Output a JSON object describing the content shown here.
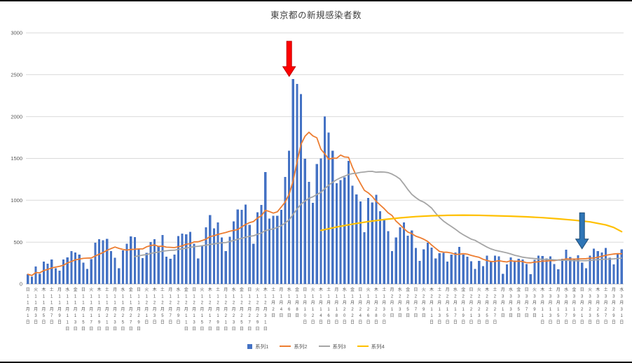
{
  "chart_data": {
    "type": "bar",
    "title": "東京都の新規感染者数",
    "xlabel": "",
    "ylabel": "",
    "ylim": [
      0,
      3000
    ],
    "y_ticks": [
      0,
      500,
      1000,
      1500,
      2000,
      2500,
      3000
    ],
    "grid": true,
    "legend_position": "bottom",
    "axis_color": "#BFBFBF",
    "gridline_color": "#D9D9D9",
    "tick_label_color": "#595959",
    "month_char": "月",
    "day_char": "日",
    "x_tick_interval": 2,
    "x_ticks": [
      [
        11,
        1,
        "日"
      ],
      [
        11,
        3,
        "火"
      ],
      [
        11,
        5,
        "木"
      ],
      [
        11,
        7,
        "土"
      ],
      [
        11,
        9,
        "月"
      ],
      [
        11,
        11,
        "水"
      ],
      [
        11,
        13,
        "金"
      ],
      [
        11,
        15,
        "日"
      ],
      [
        11,
        17,
        "火"
      ],
      [
        11,
        19,
        "木"
      ],
      [
        11,
        21,
        "土"
      ],
      [
        11,
        23,
        "月"
      ],
      [
        11,
        25,
        "水"
      ],
      [
        11,
        27,
        "金"
      ],
      [
        11,
        29,
        "日"
      ],
      [
        12,
        1,
        "火"
      ],
      [
        12,
        3,
        "木"
      ],
      [
        12,
        5,
        "土"
      ],
      [
        12,
        7,
        "月"
      ],
      [
        12,
        9,
        "水"
      ],
      [
        12,
        11,
        "金"
      ],
      [
        12,
        13,
        "日"
      ],
      [
        12,
        15,
        "火"
      ],
      [
        12,
        17,
        "木"
      ],
      [
        12,
        19,
        "土"
      ],
      [
        12,
        21,
        "月"
      ],
      [
        12,
        23,
        "水"
      ],
      [
        12,
        25,
        "金"
      ],
      [
        12,
        27,
        "日"
      ],
      [
        12,
        29,
        "火"
      ],
      [
        12,
        31,
        "木"
      ],
      [
        1,
        2,
        "土"
      ],
      [
        1,
        4,
        "月"
      ],
      [
        1,
        6,
        "水"
      ],
      [
        1,
        8,
        "金"
      ],
      [
        1,
        10,
        "日"
      ],
      [
        1,
        12,
        "火"
      ],
      [
        1,
        14,
        "木"
      ],
      [
        1,
        16,
        "土"
      ],
      [
        1,
        18,
        "月"
      ],
      [
        1,
        20,
        "水"
      ],
      [
        1,
        22,
        "金"
      ],
      [
        1,
        24,
        "日"
      ],
      [
        1,
        26,
        "火"
      ],
      [
        1,
        28,
        "木"
      ],
      [
        1,
        30,
        "土"
      ],
      [
        2,
        1,
        "月"
      ],
      [
        2,
        3,
        "水"
      ],
      [
        2,
        5,
        "金"
      ],
      [
        2,
        7,
        "日"
      ],
      [
        2,
        9,
        "火"
      ],
      [
        2,
        11,
        "木"
      ],
      [
        2,
        13,
        "土"
      ],
      [
        2,
        15,
        "月"
      ],
      [
        2,
        17,
        "水"
      ],
      [
        2,
        19,
        "金"
      ],
      [
        2,
        21,
        "日"
      ],
      [
        2,
        23,
        "火"
      ],
      [
        2,
        25,
        "木"
      ],
      [
        2,
        27,
        "土"
      ],
      [
        3,
        1,
        "月"
      ],
      [
        3,
        3,
        "水"
      ],
      [
        3,
        5,
        "金"
      ],
      [
        3,
        7,
        "日"
      ],
      [
        3,
        9,
        "火"
      ],
      [
        3,
        11,
        "木"
      ],
      [
        3,
        13,
        "土"
      ],
      [
        3,
        15,
        "月"
      ],
      [
        3,
        17,
        "水"
      ],
      [
        3,
        19,
        "金"
      ],
      [
        3,
        21,
        "日"
      ],
      [
        3,
        23,
        "火"
      ],
      [
        3,
        25,
        "木"
      ],
      [
        3,
        27,
        "土"
      ],
      [
        3,
        29,
        "月"
      ],
      [
        3,
        31,
        "水"
      ]
    ],
    "values": [
      116,
      87,
      209,
      122,
      269,
      242,
      294,
      189,
      157,
      293,
      317,
      393,
      374,
      352,
      255,
      180,
      298,
      493,
      534,
      522,
      539,
      391,
      314,
      186,
      401,
      481,
      570,
      561,
      418,
      311,
      372,
      500,
      533,
      449,
      584,
      327,
      299,
      352,
      572,
      602,
      595,
      621,
      480,
      305,
      460,
      678,
      822,
      664,
      736,
      556,
      392,
      563,
      748,
      888,
      884,
      949,
      708,
      481,
      856,
      944,
      1337,
      783,
      814,
      816,
      884,
      1278,
      1591,
      2447,
      2392,
      2268,
      1494,
      1219,
      970,
      1433,
      1502,
      2001,
      1809,
      1592,
      1204,
      1240,
      1274,
      1471,
      1175,
      1070,
      986,
      618,
      1026,
      973,
      1064,
      868,
      769,
      633,
      393,
      556,
      676,
      734,
      577,
      639,
      429,
      276,
      412,
      491,
      434,
      307,
      369,
      371,
      266,
      350,
      378,
      445,
      353,
      327,
      272,
      178,
      275,
      213,
      340,
      270,
      337,
      329,
      121,
      232,
      316,
      279,
      301,
      293,
      237,
      116,
      290,
      340,
      335,
      304,
      330,
      239,
      175,
      300,
      409,
      323,
      303,
      342,
      256,
      187,
      337,
      420,
      394,
      376,
      430,
      313,
      234,
      364,
      414
    ],
    "series": [
      {
        "name": "系列1",
        "type": "bar",
        "color": "#4472C4"
      },
      {
        "name": "系列2",
        "type": "line",
        "color": "#ED7D31",
        "moving_average_window": 7,
        "min_periods": 1,
        "width": 1.8
      },
      {
        "name": "系列3",
        "type": "line",
        "color": "#A5A5A5",
        "moving_average_window": 28,
        "width": 1.8
      },
      {
        "name": "系列4",
        "type": "line",
        "color": "#FFC000",
        "width": 2.2,
        "points": [
          [
            74,
            640
          ],
          [
            78,
            680
          ],
          [
            82,
            715
          ],
          [
            86,
            745
          ],
          [
            90,
            770
          ],
          [
            94,
            790
          ],
          [
            98,
            805
          ],
          [
            102,
            815
          ],
          [
            106,
            820
          ],
          [
            110,
            822
          ],
          [
            114,
            820
          ],
          [
            118,
            815
          ],
          [
            122,
            810
          ],
          [
            126,
            802
          ],
          [
            130,
            792
          ],
          [
            134,
            778
          ],
          [
            138,
            762
          ],
          [
            142,
            742
          ],
          [
            146,
            705
          ],
          [
            148,
            675
          ],
          [
            150,
            625
          ]
        ]
      }
    ],
    "annotations": [
      {
        "name": "red-arrow-annotation",
        "shape": "arrow-down",
        "day_index": 66,
        "value_from": 2900,
        "value_to": 2480,
        "fill": "#FF0000",
        "stroke": "#C00000"
      },
      {
        "name": "blue-arrow-annotation",
        "shape": "arrow-down",
        "day_index": 140,
        "value_from": 850,
        "value_to": 420,
        "fill": "#2E75B6",
        "stroke": "#1F4E79"
      }
    ]
  }
}
